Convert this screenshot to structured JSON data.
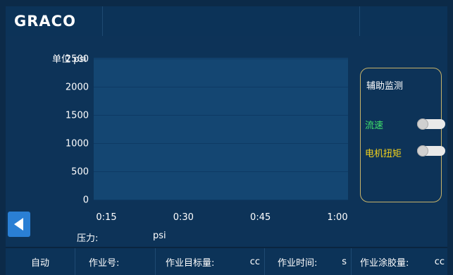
{
  "header": {
    "logo": "GRACO"
  },
  "chart_data": {
    "type": "line",
    "ylabel": "单位 psi",
    "y_ticks": [
      "2500",
      "2000",
      "1500",
      "1000",
      "500",
      "0"
    ],
    "x_ticks": [
      "0:15",
      "0:30",
      "0:45",
      "1:00"
    ],
    "ylim": [
      0,
      2500
    ],
    "grid": true,
    "series": []
  },
  "pressure": {
    "label": "压力:",
    "value": "",
    "unit": "psi"
  },
  "monitor": {
    "title": "辅助监测",
    "flow": {
      "label": "流速",
      "color": "#3fe06b",
      "on": false
    },
    "motor_torque": {
      "label": "电机扭矩",
      "color": "#f2d21b",
      "on": false
    }
  },
  "footer": {
    "mode": "自动",
    "job_no_label": "作业号:",
    "job_target_label": "作业目标量:",
    "job_target_unit": "cc",
    "job_time_label": "作业时间:",
    "job_time_unit": "s",
    "job_dispensed_label": "作业涂胶量:",
    "job_dispensed_unit": "cc"
  }
}
